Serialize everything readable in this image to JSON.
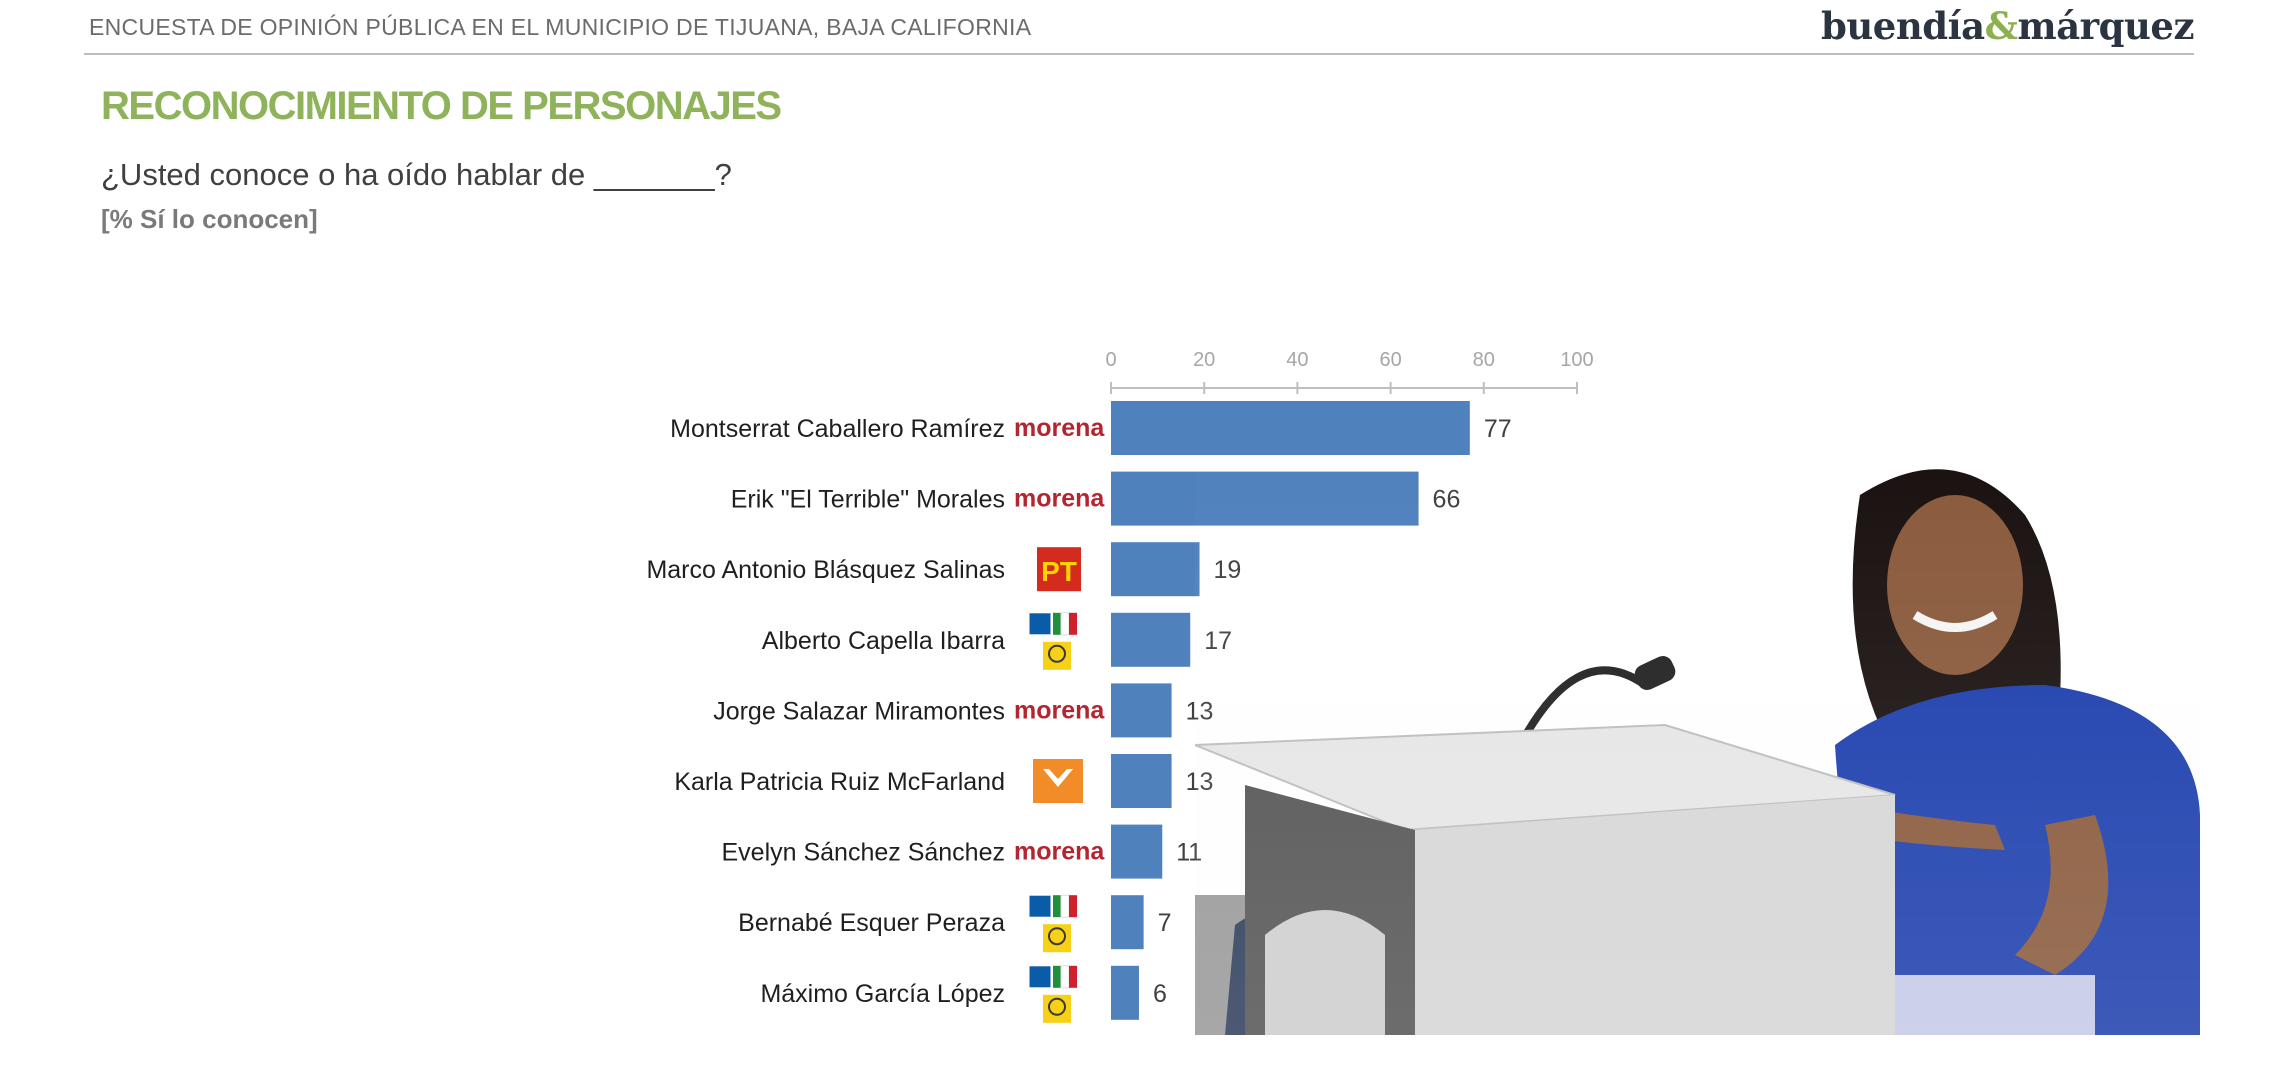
{
  "header": {
    "survey_title": "ENCUESTA DE OPINIÓN PÚBLICA EN EL MUNICIPIO DE TIJUANA, BAJA CALIFORNIA",
    "brand_left": "buendía",
    "brand_amp": "&",
    "brand_right": "márquez"
  },
  "section": {
    "title": "RECONOCIMIENTO DE PERSONAJES",
    "question": "¿Usted conoce o ha oído hablar de _______?",
    "note": "[% Sí lo conocen]"
  },
  "party_logos": {
    "morena_text": "morena",
    "pt_text": "PT"
  },
  "colors": {
    "bar": "#4f81bd",
    "title_green": "#8fb35a",
    "morena": "#b5252f",
    "pt": "#d52b1e",
    "mc": "#f28c28",
    "pan": "#0a5ba8",
    "pri": "#d0202e",
    "prd": "#f7d117"
  },
  "chart_data": {
    "type": "bar",
    "orientation": "horizontal",
    "xlim": [
      0,
      100
    ],
    "ticks": [
      0,
      20,
      40,
      60,
      80,
      100
    ],
    "axis_position": "top",
    "grid": false,
    "categories": [
      "Montserrat Caballero Ramírez",
      "Erik \"El Terrible\" Morales",
      "Marco Antonio Blásquez Salinas",
      "Alberto Capella Ibarra",
      "Jorge Salazar Miramontes",
      "Karla Patricia Ruiz McFarland",
      "Evelyn Sánchez Sánchez",
      "Bernabé Esquer Peraza",
      "Máximo García López"
    ],
    "parties": [
      "morena",
      "morena",
      "pt",
      "coalition",
      "morena",
      "mc",
      "morena",
      "coalition",
      "coalition"
    ],
    "values": [
      77,
      66,
      19,
      17,
      13,
      13,
      11,
      7,
      6
    ]
  }
}
